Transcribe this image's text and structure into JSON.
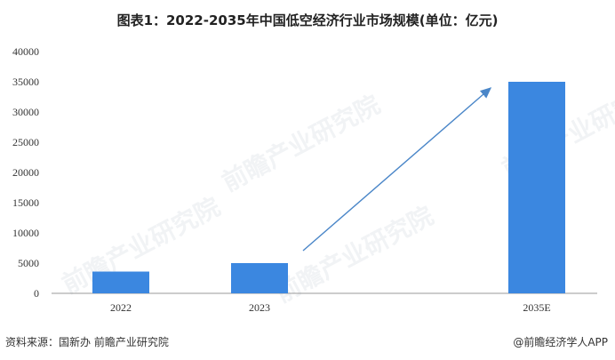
{
  "header": {
    "title": "图表1：2022-2035年中国低空经济行业市场规模(单位：亿元)"
  },
  "footer": {
    "source": "资料来源：国新办 前瞻产业研究院",
    "brand": "@前瞻经济学人APP"
  },
  "watermark": {
    "text": "前瞻产业研究院"
  },
  "chart_data": {
    "type": "bar",
    "title": "图表1：2022-2035年中国低空经济行业市场规模(单位：亿元)",
    "categories": [
      "2022",
      "2023",
      "2035E"
    ],
    "values": [
      3600,
      5000,
      35000
    ],
    "ylim": [
      0,
      40000
    ],
    "yticks": [
      0,
      5000,
      10000,
      15000,
      20000,
      25000,
      30000,
      35000,
      40000
    ],
    "grid": false,
    "bar_color": "#3b87e0",
    "arrow_color": "#4a86c8",
    "annotation": "trend-arrow"
  }
}
